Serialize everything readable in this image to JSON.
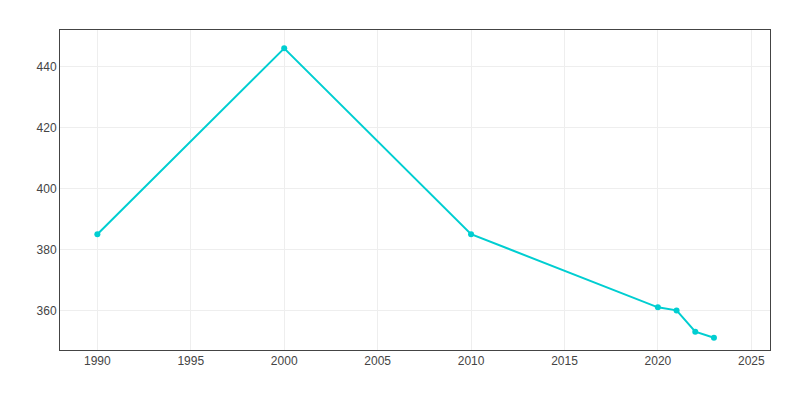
{
  "chart_data": {
    "type": "line",
    "x": [
      1990,
      2000,
      2010,
      2020,
      2021,
      2022,
      2023
    ],
    "values": [
      385,
      446,
      385,
      361,
      360,
      353,
      351
    ],
    "color": "#00CED1",
    "marker": "circle",
    "xlim": [
      1988,
      2026
    ],
    "xticks": [
      1990,
      1995,
      2000,
      2005,
      2010,
      2015,
      2020,
      2025
    ],
    "ylim": [
      347,
      452
    ],
    "yticks": [
      360,
      380,
      400,
      420,
      440
    ],
    "grid": true
  }
}
